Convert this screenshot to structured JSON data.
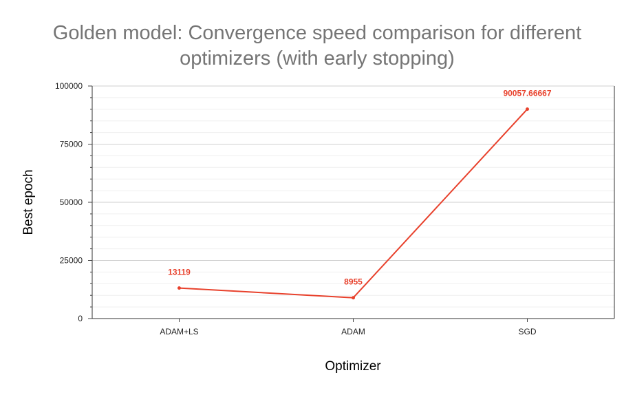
{
  "chart_data": {
    "type": "line",
    "title_line1": "Golden model: Convergence speed comparison for different",
    "title_line2": "optimizers (with early stopping)",
    "xlabel": "Optimizer",
    "ylabel": "Best epoch",
    "categories": [
      "ADAM+LS",
      "ADAM",
      "SGD"
    ],
    "series": [
      {
        "values": [
          13119,
          8955,
          90057.66667
        ],
        "data_labels": [
          "13119",
          "8955",
          "90057.66667"
        ],
        "color": "#e8412c"
      }
    ],
    "ylim": [
      0,
      100000
    ],
    "yticks": [
      0,
      25000,
      50000,
      75000,
      100000
    ],
    "ytick_labels": [
      "0",
      "25000",
      "50000",
      "75000",
      "100000"
    ],
    "grid": true,
    "legend": "none"
  }
}
